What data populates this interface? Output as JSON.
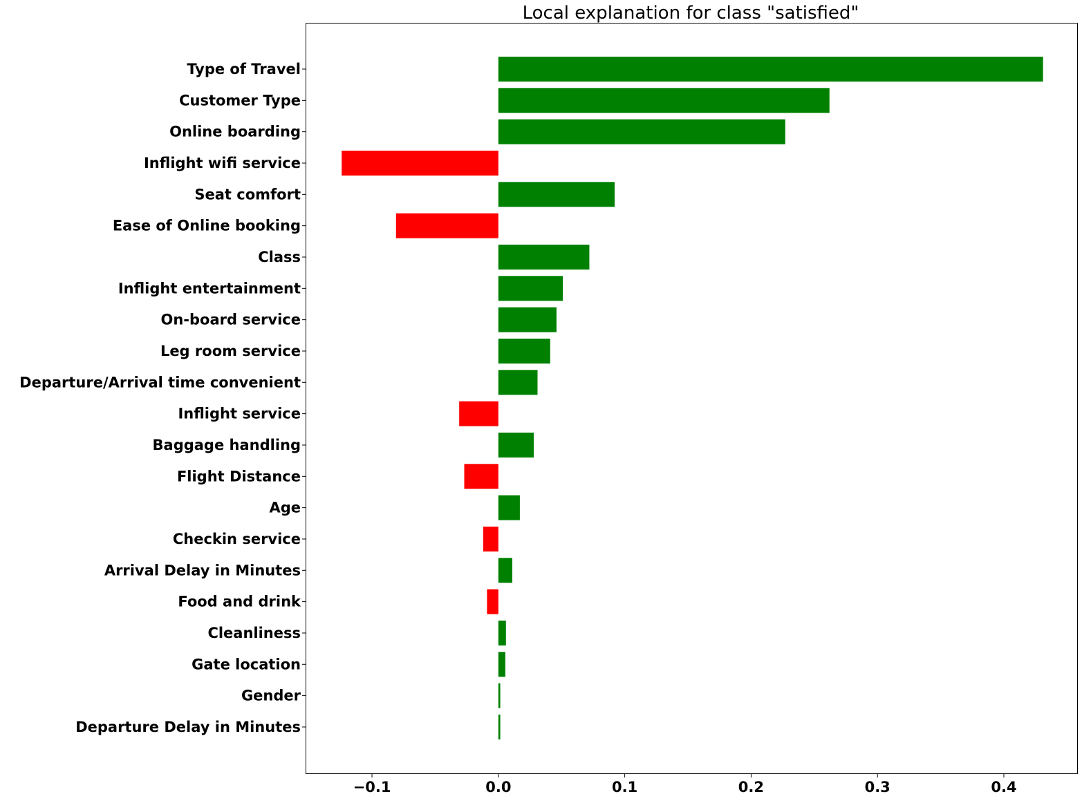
{
  "chart_data": {
    "type": "bar",
    "orientation": "horizontal",
    "title": "Local explanation for class \"satisfied\"",
    "xlabel": "",
    "ylabel": "",
    "xlim": [
      -0.152,
      0.458
    ],
    "xticks": [
      -0.1,
      0.0,
      0.1,
      0.2,
      0.3,
      0.4
    ],
    "xtick_labels": [
      "−0.1",
      "0.0",
      "0.1",
      "0.2",
      "0.3",
      "0.4"
    ],
    "grid": false,
    "legend": "none",
    "colors": {
      "positive": "#008000",
      "negative": "#ff0000"
    },
    "categories": [
      "Type of Travel",
      "Customer Type",
      "Online boarding",
      "Inflight wifi service",
      "Seat comfort",
      "Ease of Online booking",
      "Class",
      "Inflight entertainment",
      "On-board service",
      "Leg room service",
      "Departure/Arrival time convenient",
      "Inflight service",
      "Baggage handling",
      "Flight Distance",
      "Age",
      "Checkin service",
      "Arrival Delay in Minutes",
      "Food and drink",
      "Cleanliness",
      "Gate location",
      "Gender",
      "Departure Delay in Minutes"
    ],
    "values": [
      0.431,
      0.262,
      0.227,
      -0.124,
      0.092,
      -0.081,
      0.072,
      0.051,
      0.046,
      0.041,
      0.031,
      -0.031,
      0.028,
      -0.027,
      0.017,
      -0.012,
      0.011,
      -0.009,
      0.006,
      0.0055,
      0.0015,
      0.0015
    ]
  }
}
